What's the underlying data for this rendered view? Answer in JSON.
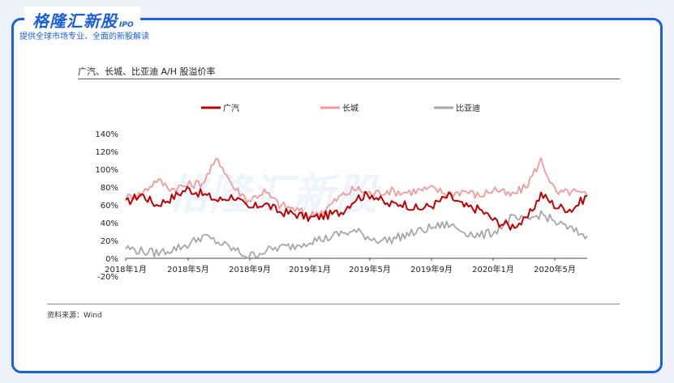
{
  "brand": {
    "name": "格隆汇新股",
    "suffix": "IPO",
    "tagline": "提供全球市场专业、全面的新股解读"
  },
  "title": "广汽、长城、比亚迪 A/H 股溢价率",
  "source": "资料来源：Wind",
  "colors": {
    "brand": "#1a5fe0",
    "gac": "#c00000",
    "gwm": "#f19a9a",
    "byd": "#a6a6a6"
  },
  "chart_data": {
    "type": "line",
    "title": "广汽、长城、比亚迪 A/H 股溢价率",
    "x_labels": [
      "2018年1月",
      "2018年5月",
      "2018年9月",
      "2019年1月",
      "2019年5月",
      "2019年9月",
      "2020年1月",
      "2020年5月"
    ],
    "y_ticks": [
      "140%",
      "120%",
      "100%",
      "80%",
      "60%",
      "40%",
      "20%",
      "0%",
      "-20%"
    ],
    "ylim": [
      -20,
      140
    ],
    "legend_position": "top",
    "x": [
      "2018-01",
      "2018-02",
      "2018-03",
      "2018-04",
      "2018-05",
      "2018-06",
      "2018-07",
      "2018-08",
      "2018-09",
      "2018-10",
      "2018-11",
      "2018-12",
      "2019-01",
      "2019-02",
      "2019-03",
      "2019-04",
      "2019-05",
      "2019-06",
      "2019-07",
      "2019-08",
      "2019-09",
      "2019-10",
      "2019-11",
      "2019-12",
      "2020-01",
      "2020-02",
      "2020-03",
      "2020-04",
      "2020-05",
      "2020-06",
      "2020-07"
    ],
    "series": [
      {
        "name": "广汽",
        "values": [
          62,
          72,
          60,
          68,
          78,
          72,
          65,
          70,
          55,
          62,
          52,
          50,
          45,
          48,
          52,
          68,
          72,
          60,
          62,
          55,
          60,
          70,
          58,
          55,
          42,
          36,
          42,
          72,
          58,
          55,
          70
        ]
      },
      {
        "name": "长城",
        "values": [
          68,
          72,
          88,
          78,
          82,
          85,
          112,
          80,
          65,
          75,
          60,
          55,
          48,
          55,
          70,
          78,
          72,
          76,
          74,
          76,
          78,
          72,
          76,
          70,
          78,
          70,
          80,
          110,
          72,
          75,
          70
        ]
      },
      {
        "name": "比亚迪",
        "values": [
          12,
          8,
          6,
          10,
          15,
          25,
          18,
          10,
          2,
          8,
          12,
          14,
          20,
          22,
          28,
          30,
          22,
          20,
          25,
          30,
          35,
          38,
          30,
          25,
          30,
          45,
          42,
          50,
          40,
          32,
          25
        ]
      }
    ]
  },
  "watermark": "格隆汇新股"
}
